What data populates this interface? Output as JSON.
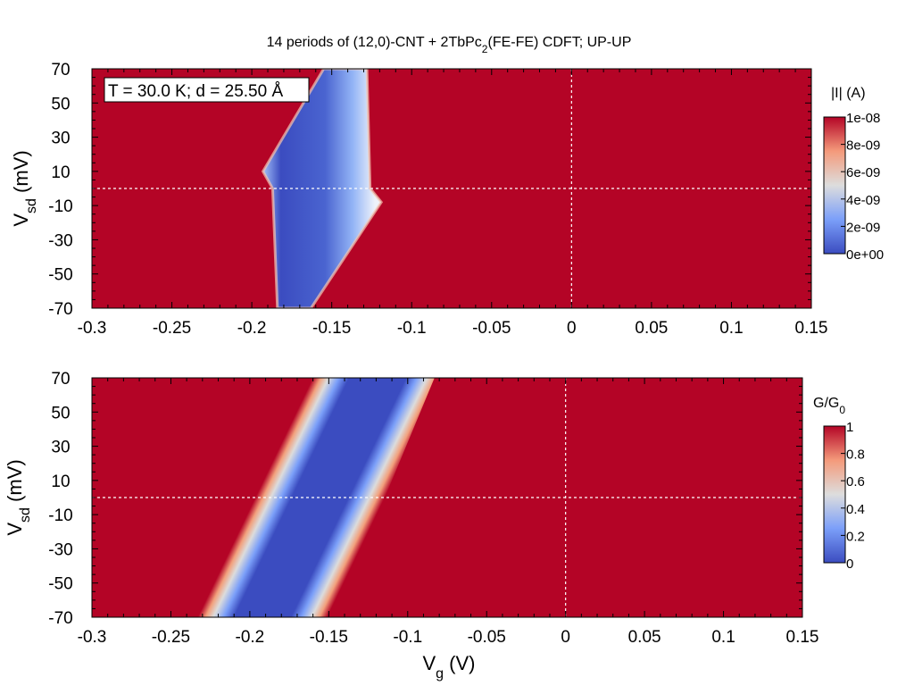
{
  "title_parts": {
    "pre": "14 periods of (12,0)-CNT + 2TbPc",
    "sub": "2",
    "post": "(FE-FE) CDFT; UP-UP"
  },
  "annotation": "T = 30.0 K; d = 25.50 Å",
  "colors": {
    "high": "#b40426",
    "mid": "#dddddd",
    "low": "#3b4cc0",
    "frame": "#000000",
    "guide": "#ffffff"
  },
  "chart_data": [
    {
      "type": "heatmap",
      "panel": "top",
      "quantity": "|I| (A)",
      "xlabel": "",
      "ylabel": {
        "main": "V",
        "sub": "sd",
        "unit": " (mV)"
      },
      "xlim": [
        -0.3,
        0.15
      ],
      "ylim": [
        -70,
        70
      ],
      "xticks": [
        -0.3,
        -0.25,
        -0.2,
        -0.15,
        -0.1,
        -0.05,
        0,
        0.05,
        0.1,
        0.15
      ],
      "xtick_labels": [
        "-0.3",
        "-0.25",
        "-0.2",
        "-0.15",
        "-0.1",
        "-0.05",
        "0",
        "0.05",
        "0.1",
        "0.15"
      ],
      "yticks": [
        70,
        50,
        30,
        10,
        -10,
        -30,
        -50,
        -70
      ],
      "ytick_labels": [
        "70",
        "50",
        "30",
        "10",
        "-10",
        "-30",
        "-50",
        "-70"
      ],
      "colorbar": {
        "title": {
          "main": "|I| (A)",
          "sub": ""
        },
        "range": [
          0,
          1e-08
        ],
        "ticks": [
          1e-08,
          8e-09,
          6e-09,
          4e-09,
          2e-09,
          0
        ],
        "tick_labels": [
          "1e-08",
          "8e-09",
          "6e-09",
          "4e-09",
          "2e-09",
          "0e+00"
        ]
      },
      "guides": {
        "vg": 0,
        "vsd": 0
      },
      "low_region": {
        "description": "blockade diamond",
        "vertices": [
          {
            "vg": -0.155,
            "vsd": 70
          },
          {
            "vg": -0.128,
            "vsd": 70
          },
          {
            "vg": -0.126,
            "vsd": 0
          },
          {
            "vg": -0.119,
            "vsd": -8
          },
          {
            "vg": -0.163,
            "vsd": -70
          },
          {
            "vg": -0.184,
            "vsd": -70
          },
          {
            "vg": -0.187,
            "vsd": 0
          },
          {
            "vg": -0.193,
            "vsd": 10
          }
        ]
      }
    },
    {
      "type": "heatmap",
      "panel": "bottom",
      "quantity": "G/G0",
      "xlabel": {
        "main": "V",
        "sub": "g",
        "unit": "  (V)"
      },
      "ylabel": {
        "main": "V",
        "sub": "sd",
        "unit": " (mV)"
      },
      "xlim": [
        -0.3,
        0.15
      ],
      "ylim": [
        -70,
        70
      ],
      "xticks": [
        -0.3,
        -0.25,
        -0.2,
        -0.15,
        -0.1,
        -0.05,
        0,
        0.05,
        0.1,
        0.15
      ],
      "xtick_labels": [
        "-0.3",
        "-0.25",
        "-0.2",
        "-0.15",
        "-0.1",
        "-0.05",
        "0",
        "0.05",
        "0.1",
        "0.15"
      ],
      "yticks": [
        70,
        50,
        30,
        10,
        -10,
        -30,
        -50,
        -70
      ],
      "ytick_labels": [
        "70",
        "50",
        "30",
        "10",
        "-10",
        "-30",
        "-50",
        "-70"
      ],
      "colorbar": {
        "title": {
          "main": "G/G",
          "sub": "0"
        },
        "range": [
          0,
          1
        ],
        "ticks": [
          1,
          0.8,
          0.6,
          0.4,
          0.2,
          0
        ],
        "tick_labels": [
          "1",
          "0.8",
          "0.6",
          "0.4",
          "0.2",
          "0"
        ]
      },
      "guides": {
        "vg": 0,
        "vsd": 0
      },
      "low_region": {
        "description": "diagonal low-conductance band",
        "left_edge": [
          {
            "vg": -0.233,
            "vsd": -70
          },
          {
            "vg": -0.16,
            "vsd": 70
          }
        ],
        "right_edge": [
          {
            "vg": -0.146,
            "vsd": -70
          },
          {
            "vg": -0.083,
            "vsd": 70
          }
        ]
      }
    }
  ]
}
